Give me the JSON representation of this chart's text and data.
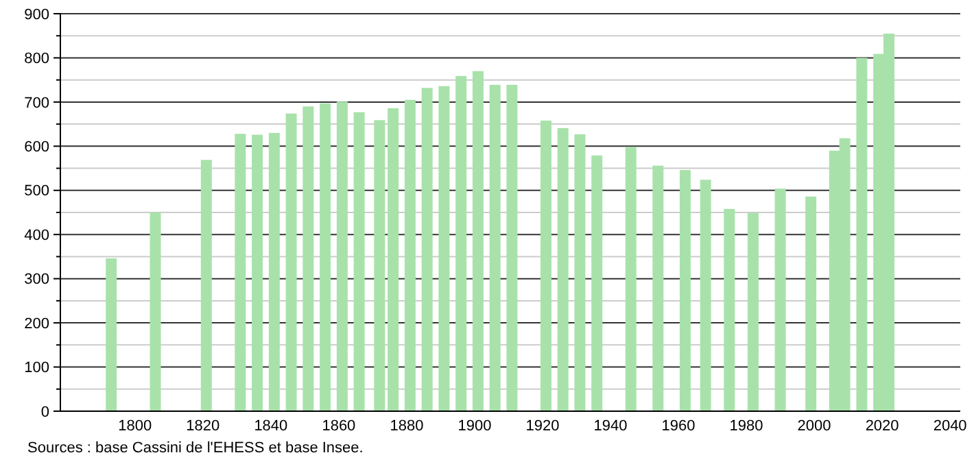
{
  "chart_data": {
    "type": "bar",
    "color": "#a8e2aa",
    "x": [
      1793,
      1806,
      1821,
      1831,
      1836,
      1841,
      1846,
      1851,
      1856,
      1861,
      1866,
      1872,
      1876,
      1881,
      1886,
      1891,
      1896,
      1901,
      1906,
      1911,
      1921,
      1926,
      1931,
      1936,
      1946,
      1954,
      1962,
      1968,
      1975,
      1982,
      1990,
      1999,
      2006,
      2009,
      2014,
      2019,
      2022
    ],
    "values": [
      346,
      450,
      569,
      628,
      626,
      630,
      674,
      690,
      697,
      701,
      677,
      659,
      686,
      705,
      732,
      736,
      759,
      770,
      739,
      739,
      658,
      641,
      627,
      579,
      598,
      556,
      546,
      524,
      458,
      449,
      504,
      486,
      590,
      618,
      800,
      809,
      855
    ],
    "xlim": [
      1776,
      2043
    ],
    "xticks": [
      1800,
      1820,
      1840,
      1860,
      1880,
      1900,
      1920,
      1940,
      1960,
      1980,
      2000,
      2020,
      2040
    ],
    "ylim": [
      0,
      900
    ],
    "yticks": [
      0,
      {
        "value": 50,
        "label": null
      },
      100,
      {
        "value": 150,
        "label": null
      },
      200,
      {
        "value": 250,
        "label": null
      },
      300,
      {
        "value": 350,
        "label": null
      },
      400,
      {
        "value": 450,
        "label": null
      },
      500,
      {
        "value": 550,
        "label": null
      },
      600,
      {
        "value": 650,
        "label": null
      },
      700,
      {
        "value": 750,
        "label": null
      },
      800,
      {
        "value": 850,
        "label": null
      },
      900
    ],
    "grid": "y",
    "annotations": [
      "Sources : base Cassini de l'EHESS et base Insee."
    ]
  }
}
